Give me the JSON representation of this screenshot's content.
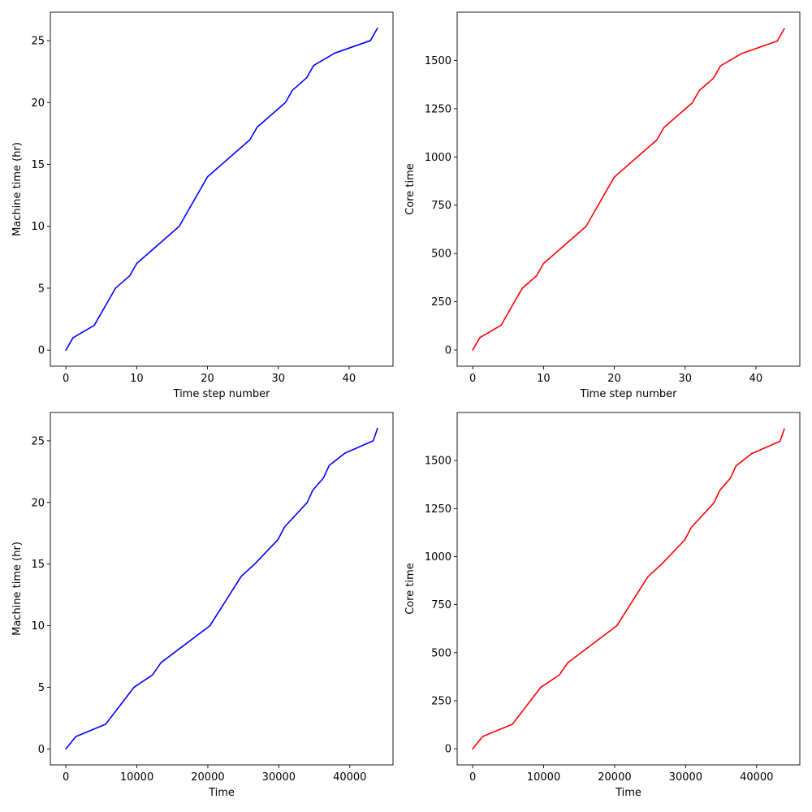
{
  "colors": {
    "blue": "#0000ff",
    "red": "#ff0000",
    "axes": "#000000",
    "background": "#ffffff"
  },
  "chart_data": [
    {
      "type": "line",
      "xlabel": "Time step number",
      "ylabel": "Machine time (hr)",
      "xlim": [
        -2.2,
        46.2
      ],
      "ylim": [
        -1.3,
        27.3
      ],
      "xticks": [
        0,
        10,
        20,
        30,
        40
      ],
      "xtick_labels": [
        "0",
        "10",
        "20",
        "30",
        "40"
      ],
      "yticks": [
        0,
        5,
        10,
        15,
        20,
        25
      ],
      "ytick_labels": [
        "0",
        "5",
        "10",
        "15",
        "20",
        "25"
      ],
      "grid": false,
      "series": [
        {
          "color": "#0000ff",
          "x": [
            0,
            1,
            4,
            7,
            9,
            10,
            16,
            20,
            26,
            27,
            31,
            32,
            34,
            35,
            38,
            43,
            44
          ],
          "y": [
            0,
            1,
            2,
            5,
            6,
            7,
            10,
            14,
            17,
            18,
            20,
            21,
            22,
            23,
            24,
            25,
            26
          ]
        }
      ]
    },
    {
      "type": "line",
      "xlabel": "Time step number",
      "ylabel": "Core time",
      "xlim": [
        -2.2,
        46.2
      ],
      "ylim": [
        -84,
        1750
      ],
      "xticks": [
        0,
        10,
        20,
        30,
        40
      ],
      "xtick_labels": [
        "0",
        "10",
        "20",
        "30",
        "40"
      ],
      "yticks": [
        0,
        250,
        500,
        750,
        1000,
        1250,
        1500
      ],
      "ytick_labels": [
        "0",
        "250",
        "500",
        "750",
        "1000",
        "1250",
        "1500"
      ],
      "grid": false,
      "series": [
        {
          "color": "#ff0000",
          "x": [
            0,
            1,
            4,
            7,
            9,
            10,
            16,
            20,
            26,
            27,
            31,
            32,
            34,
            35,
            38,
            43,
            44
          ],
          "y": [
            0,
            64,
            128,
            320,
            384,
            448,
            640,
            896,
            1088,
            1152,
            1280,
            1344,
            1408,
            1472,
            1536,
            1600,
            1664
          ]
        }
      ]
    },
    {
      "type": "line",
      "xlabel": "Time",
      "ylabel": "Machine time (hr)",
      "xlim": [
        -2190,
        46090
      ],
      "ylim": [
        -1.3,
        27.3
      ],
      "xticks": [
        0,
        10000,
        20000,
        30000,
        40000
      ],
      "xtick_labels": [
        "0",
        "10000",
        "20000",
        "30000",
        "40000"
      ],
      "yticks": [
        0,
        5,
        10,
        15,
        20,
        25
      ],
      "ytick_labels": [
        "0",
        "5",
        "10",
        "15",
        "20",
        "25"
      ],
      "grid": false,
      "series": [
        {
          "color": "#0000ff",
          "x": [
            0,
            1400,
            5600,
            9600,
            12200,
            13400,
            20300,
            24700,
            26600,
            29900,
            30800,
            34000,
            34800,
            36300,
            37100,
            39300,
            43300,
            43900
          ],
          "y": [
            0,
            1,
            2,
            5,
            6,
            7,
            10,
            14,
            15,
            17,
            18,
            20,
            21,
            22,
            23,
            24,
            25,
            26
          ]
        }
      ]
    },
    {
      "type": "line",
      "xlabel": "Time",
      "ylabel": "Core time",
      "xlim": [
        -2190,
        46090
      ],
      "ylim": [
        -84,
        1750
      ],
      "xticks": [
        0,
        10000,
        20000,
        30000,
        40000
      ],
      "xtick_labels": [
        "0",
        "10000",
        "20000",
        "30000",
        "40000"
      ],
      "yticks": [
        0,
        250,
        500,
        750,
        1000,
        1250,
        1500
      ],
      "ytick_labels": [
        "0",
        "250",
        "500",
        "750",
        "1000",
        "1250",
        "1500"
      ],
      "grid": false,
      "series": [
        {
          "color": "#ff0000",
          "x": [
            0,
            1400,
            5600,
            9600,
            12200,
            13400,
            20300,
            24700,
            26600,
            29900,
            30800,
            34000,
            34800,
            36300,
            37100,
            39300,
            43300,
            43900
          ],
          "y": [
            0,
            64,
            128,
            320,
            384,
            448,
            640,
            896,
            960,
            1088,
            1152,
            1280,
            1344,
            1408,
            1472,
            1536,
            1600,
            1664
          ]
        }
      ]
    }
  ]
}
